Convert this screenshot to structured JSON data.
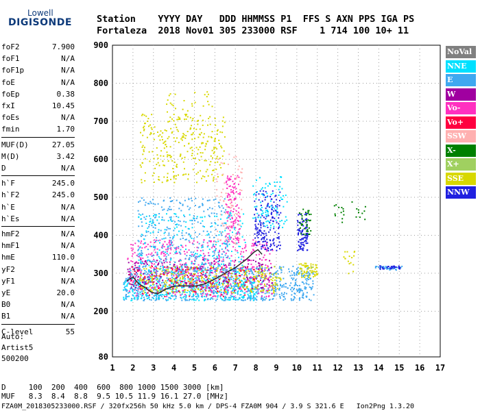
{
  "logo": {
    "top": "Lowell",
    "main": "DIGISONDE"
  },
  "header": {
    "row1": "Station    YYYY DAY   DDD HHMMSS P1  FFS S AXN PPS IGA PS",
    "row2": "Fortaleza  2018 Nov01 305 233000 RSF    1 714 100 10+ 11"
  },
  "params": {
    "group1": [
      {
        "name": "foF2",
        "value": "7.900"
      },
      {
        "name": "foF1",
        "value": "N/A"
      },
      {
        "name": "foF1p",
        "value": "N/A"
      },
      {
        "name": "foE",
        "value": "N/A"
      },
      {
        "name": "foEp",
        "value": "0.38"
      },
      {
        "name": "fxI",
        "value": "10.45"
      },
      {
        "name": "foEs",
        "value": "N/A"
      },
      {
        "name": "fmin",
        "value": "1.70"
      }
    ],
    "group2": [
      {
        "name": "MUF(D)",
        "value": "27.05"
      },
      {
        "name": "M(D)",
        "value": "3.42"
      },
      {
        "name": "D",
        "value": "N/A"
      }
    ],
    "group3": [
      {
        "name": "h`F",
        "value": "245.0"
      },
      {
        "name": "h`F2",
        "value": "245.0"
      },
      {
        "name": "h`E",
        "value": "N/A"
      },
      {
        "name": "h`Es",
        "value": "N/A"
      }
    ],
    "group4": [
      {
        "name": "hmF2",
        "value": "N/A"
      },
      {
        "name": "hmF1",
        "value": "N/A"
      },
      {
        "name": "hmE",
        "value": "110.0"
      },
      {
        "name": "yF2",
        "value": "N/A"
      },
      {
        "name": "yF1",
        "value": "N/A"
      },
      {
        "name": "yE",
        "value": "20.0"
      },
      {
        "name": "B0",
        "value": "N/A"
      },
      {
        "name": "B1",
        "value": "N/A"
      }
    ],
    "group5": [
      {
        "name": "C-level",
        "value": "55"
      }
    ]
  },
  "auto": {
    "line1": "Auto:",
    "line2": "Artist5",
    "line3": "500200"
  },
  "legend": [
    {
      "label": "NoVal",
      "color": "#808080"
    },
    {
      "label": "NNE",
      "color": "#00e0ff"
    },
    {
      "label": "E",
      "color": "#3fa8f0"
    },
    {
      "label": "W",
      "color": "#a000a0"
    },
    {
      "label": "Vo-",
      "color": "#ff30c0"
    },
    {
      "label": "Vo+",
      "color": "#ff0040"
    },
    {
      "label": "SSW",
      "color": "#ffb0b0"
    },
    {
      "label": "X-",
      "color": "#008000"
    },
    {
      "label": "X+",
      "color": "#a0d060"
    },
    {
      "label": "SSE",
      "color": "#d8d800"
    },
    {
      "label": "NNW",
      "color": "#2020e0"
    }
  ],
  "footer": {
    "line1": "D     100  200  400  600  800 1000 1500 3000 [km]",
    "line2": "MUF   8.3  8.4  8.8  9.5 10.5 11.9 16.1 27.0 [MHz]",
    "line3": "FZA0M_2018305233000.RSF / 320fx256h 50 kHz 5.0 km / DPS-4 FZA0M 904 / 3.9 S 321.6 E   Ion2Png 1.3.20"
  },
  "chart_data": {
    "type": "scatter",
    "title": "",
    "xlabel": "",
    "ylabel": "",
    "xlim": [
      1,
      17
    ],
    "ylim": [
      80,
      900
    ],
    "x_ticks": [
      1,
      2,
      3,
      4,
      5,
      6,
      7,
      8,
      9,
      10,
      11,
      12,
      13,
      14,
      15,
      16,
      17
    ],
    "y_ticks": [
      80,
      200,
      300,
      400,
      500,
      600,
      700,
      800,
      900
    ],
    "trace": {
      "name": "",
      "color": "#2a2a2a",
      "x": [
        1.7,
        2.0,
        2.3,
        2.6,
        2.9,
        3.2,
        3.6,
        4.0,
        4.5,
        5.0,
        5.5,
        6.0,
        6.5,
        7.0,
        7.5,
        7.9,
        8.1,
        8.3
      ],
      "y": [
        280,
        290,
        272,
        262,
        250,
        246,
        258,
        266,
        267,
        266,
        272,
        285,
        300,
        315,
        335,
        355,
        362,
        350
      ]
    },
    "scatter_regions": [
      {
        "color": "#3fa8f0",
        "x": [
          1.5,
          10.8
        ],
        "y": [
          230,
          320
        ],
        "n": 900
      },
      {
        "color": "#00e0ff",
        "x": [
          1.5,
          8.0
        ],
        "y": [
          230,
          290
        ],
        "n": 350
      },
      {
        "color": "#ff30c0",
        "x": [
          1.7,
          8.8
        ],
        "y": [
          240,
          390
        ],
        "n": 500
      },
      {
        "color": "#a000a0",
        "x": [
          1.7,
          8.8
        ],
        "y": [
          260,
          340
        ],
        "n": 250
      },
      {
        "color": "#d8d800",
        "x": [
          2.3,
          9.2
        ],
        "y": [
          250,
          320
        ],
        "n": 300
      },
      {
        "color": "#d8d800",
        "x": [
          2.3,
          6.5
        ],
        "y": [
          540,
          720
        ],
        "n": 260
      },
      {
        "color": "#3fa8f0",
        "x": [
          2.2,
          6.8
        ],
        "y": [
          300,
          500
        ],
        "n": 350
      },
      {
        "color": "#00e0ff",
        "x": [
          2.2,
          7.5
        ],
        "y": [
          300,
          460
        ],
        "n": 200
      },
      {
        "color": "#ff30c0",
        "x": [
          6.5,
          7.2
        ],
        "y": [
          380,
          560
        ],
        "n": 120
      },
      {
        "color": "#2020e0",
        "x": [
          7.9,
          9.2
        ],
        "y": [
          360,
          520
        ],
        "n": 180
      },
      {
        "color": "#00e0ff",
        "x": [
          7.8,
          9.5
        ],
        "y": [
          420,
          560
        ],
        "n": 90
      },
      {
        "color": "#2020e0",
        "x": [
          10.0,
          10.5
        ],
        "y": [
          360,
          460
        ],
        "n": 90
      },
      {
        "color": "#008000",
        "x": [
          10.1,
          10.7
        ],
        "y": [
          400,
          470
        ],
        "n": 40
      },
      {
        "color": "#d8d800",
        "x": [
          10.0,
          11.0
        ],
        "y": [
          290,
          330
        ],
        "n": 60
      },
      {
        "color": "#3fa8f0",
        "x": [
          13.8,
          15.1
        ],
        "y": [
          310,
          320
        ],
        "n": 40
      },
      {
        "color": "#2020e0",
        "x": [
          14.0,
          15.0
        ],
        "y": [
          312,
          322
        ],
        "n": 30
      },
      {
        "color": "#008000",
        "x": [
          11.8,
          13.4
        ],
        "y": [
          430,
          490
        ],
        "n": 22
      },
      {
        "color": "#d8d800",
        "x": [
          12.2,
          12.9
        ],
        "y": [
          300,
          360
        ],
        "n": 16
      },
      {
        "color": "#d8d800",
        "x": [
          3.0,
          6.0
        ],
        "y": [
          600,
          780
        ],
        "n": 60
      },
      {
        "color": "#ffb0b0",
        "x": [
          6.0,
          7.3
        ],
        "y": [
          380,
          620
        ],
        "n": 70
      },
      {
        "color": "#ff0040",
        "x": [
          1.8,
          8.0
        ],
        "y": [
          240,
          320
        ],
        "n": 120
      }
    ]
  }
}
